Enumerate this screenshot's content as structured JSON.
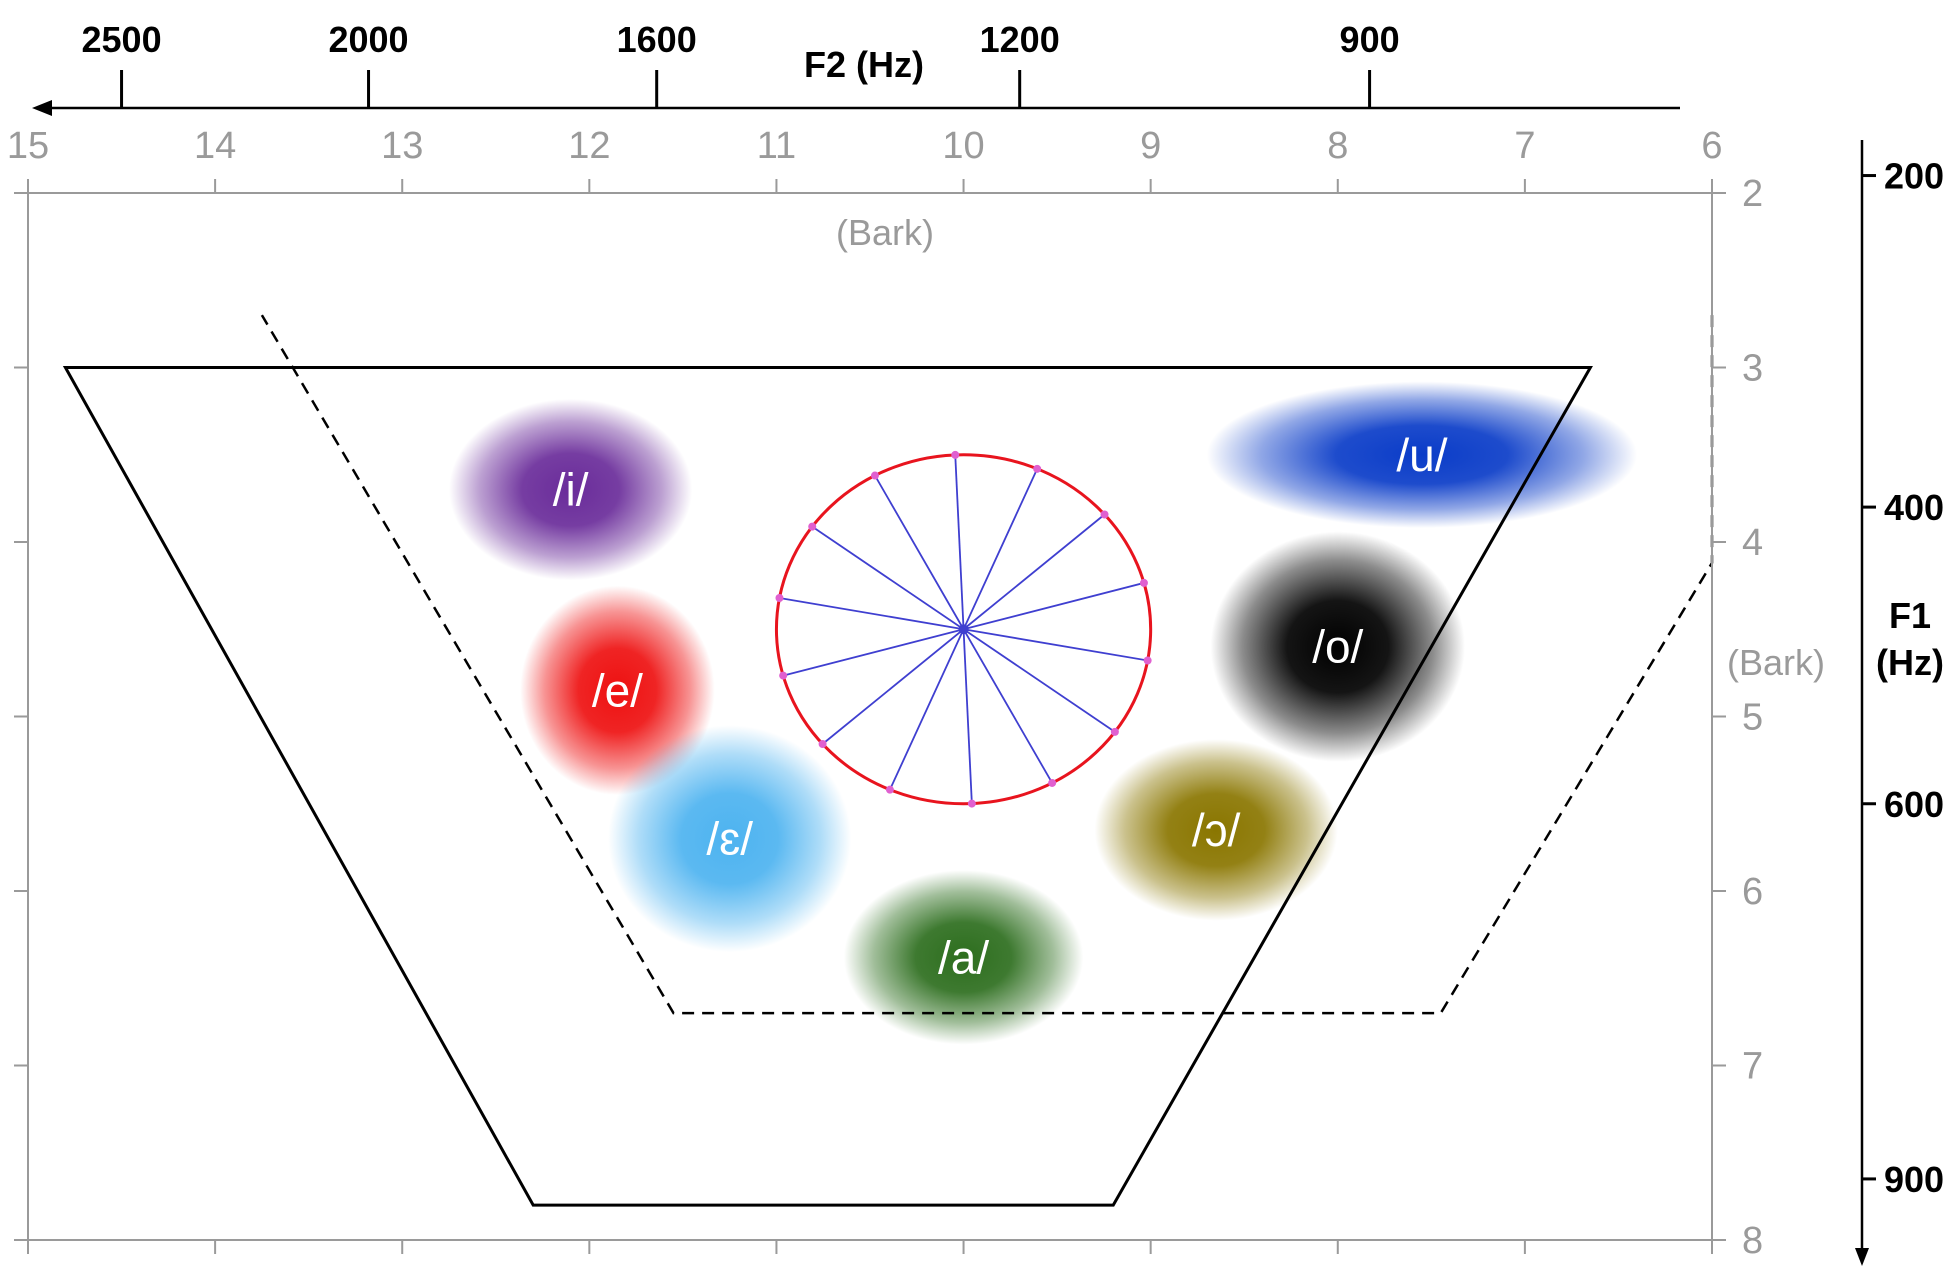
{
  "chart_data": {
    "type": "scatter",
    "x_axis_bark": {
      "label": "(Bark)",
      "ticks": [
        "15",
        "14",
        "13",
        "12",
        "11",
        "10",
        "9",
        "8",
        "7",
        "6"
      ],
      "range": [
        15,
        6
      ],
      "reversed": true
    },
    "x_axis_hz": {
      "label": "F2 (Hz)",
      "ticks": [
        {
          "label": "2500",
          "bark": 14.5
        },
        {
          "label": "2000",
          "bark": 13.18
        },
        {
          "label": "1600",
          "bark": 11.64
        },
        {
          "label": "1200",
          "bark": 9.7
        },
        {
          "label": "900",
          "bark": 7.83
        }
      ]
    },
    "y_axis_bark": {
      "label": "(Bark)",
      "ticks": [
        "2",
        "3",
        "4",
        "5",
        "6",
        "7",
        "8"
      ],
      "range": [
        2,
        8
      ],
      "reversed": true
    },
    "y_axis_hz": {
      "label_line1": "F1",
      "label_line2": "(Hz)",
      "ticks": [
        {
          "label": "200",
          "bark": 1.9
        },
        {
          "label": "400",
          "bark": 3.8
        },
        {
          "label": "600",
          "bark": 5.5
        },
        {
          "label": "900",
          "bark": 7.65
        }
      ]
    },
    "vowels": [
      {
        "label": "/i/",
        "f2_bark": 12.1,
        "f1_bark": 3.7,
        "rx_bark": 0.65,
        "ry_bark": 0.52,
        "color": "#6a2c9a"
      },
      {
        "label": "/e/",
        "f2_bark": 11.85,
        "f1_bark": 4.85,
        "rx_bark": 0.52,
        "ry_bark": 0.6,
        "color": "#ee1111"
      },
      {
        "label": "/ɛ/",
        "f2_bark": 11.25,
        "f1_bark": 5.7,
        "rx_bark": 0.65,
        "ry_bark": 0.65,
        "color": "#4db3f0"
      },
      {
        "label": "/a/",
        "f2_bark": 10.0,
        "f1_bark": 6.38,
        "rx_bark": 0.64,
        "ry_bark": 0.5,
        "color": "#2d6e1e"
      },
      {
        "label": "/ɔ/",
        "f2_bark": 8.65,
        "f1_bark": 5.65,
        "rx_bark": 0.65,
        "ry_bark": 0.52,
        "color": "#8a7600"
      },
      {
        "label": "/o/",
        "f2_bark": 8.0,
        "f1_bark": 4.6,
        "rx_bark": 0.68,
        "ry_bark": 0.66,
        "color": "#000000"
      },
      {
        "label": "/u/",
        "f2_bark": 7.55,
        "f1_bark": 3.5,
        "rx_bark": 1.15,
        "ry_bark": 0.42,
        "color": "#0a3cc8"
      }
    ],
    "outer_trapezoid_bark": [
      [
        14.8,
        3.0
      ],
      [
        6.65,
        3.0
      ],
      [
        9.2,
        7.8
      ],
      [
        12.3,
        7.8
      ]
    ],
    "dashed_trapezoid_bark": [
      [
        13.75,
        2.7
      ],
      [
        6.0,
        2.7
      ],
      [
        6.0,
        4.12
      ],
      [
        7.45,
        6.7
      ],
      [
        11.55,
        6.7
      ]
    ],
    "wheel": {
      "center_f2_bark": 10.0,
      "center_f1_bark": 4.5,
      "radius_bark": 1.0,
      "spokes": 14,
      "rim_color": "#e8141e",
      "spoke_color": "#3f3fd0",
      "node_color": "#e060d0"
    },
    "colors": {
      "plot_frame": "#9a9a9a",
      "hz_axis": "#000000",
      "outer_trapezoid": "#000000",
      "dashed_trapezoid": "#000000"
    },
    "grid": false
  }
}
